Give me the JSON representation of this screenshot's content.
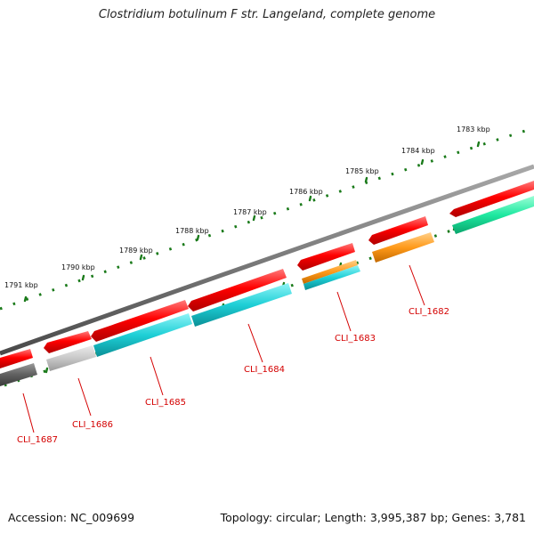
{
  "title": "Clostridium botulinum F str. Langeland, complete genome",
  "footer": {
    "accession_label": "Accession: NC_009699",
    "stats": "Topology: circular; Length: 3,995,387 bp; Genes: 3,781"
  },
  "colors": {
    "backbone": "#7a7a7a",
    "gene_red": "#ff0000",
    "tick_green": "#1a7a1a",
    "label_red": "#d40000",
    "cyan": "#1ecfd6",
    "orange": "#ff9a1a",
    "light_gray": "#c8c8c8",
    "dark_gray": "#606060",
    "mint": "#1ee8a0"
  },
  "scale_labels": [
    "1783 kbp",
    "1784 kbp",
    "1785 kbp",
    "1786 kbp",
    "1787 kbp",
    "1788 kbp",
    "1789 kbp",
    "1790 kbp",
    "1791 kbp"
  ],
  "gene_labels": [
    "CLI_1682",
    "CLI_1683",
    "CLI_1684",
    "CLI_1685",
    "CLI_1686",
    "CLI_1687"
  ]
}
